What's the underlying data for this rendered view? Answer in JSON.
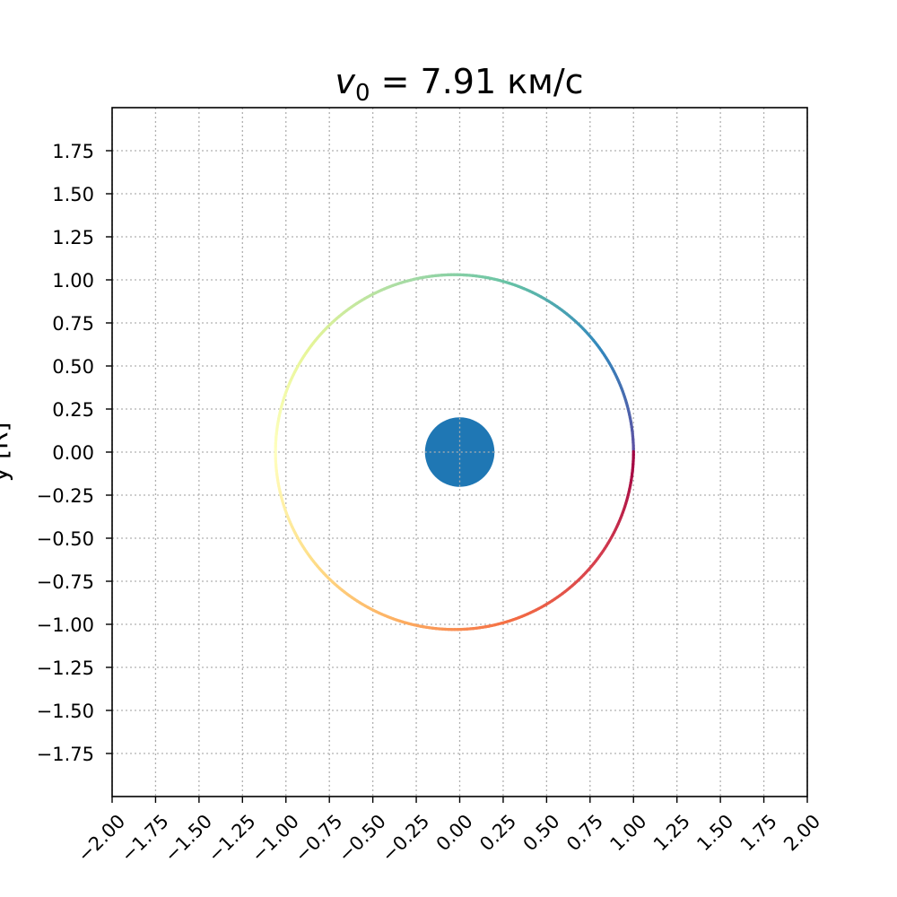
{
  "chart_data": {
    "type": "scatter",
    "title": {
      "var": "v",
      "sub": "0",
      "rest": " = 7.91 км/с"
    },
    "ylabel": "y [R]",
    "xlim": [
      -2.0,
      2.0
    ],
    "ylim": [
      -2.0,
      2.0
    ],
    "x_ticks": [
      "−2.00",
      "−1.75",
      "−1.50",
      "−1.25",
      "−1.00",
      "−0.75",
      "−0.50",
      "−0.25",
      "0.00",
      "0.25",
      "0.50",
      "0.75",
      "1.00",
      "1.25",
      "1.50",
      "1.75",
      "2.00"
    ],
    "x_tick_values": [
      -2.0,
      -1.75,
      -1.5,
      -1.25,
      -1.0,
      -0.75,
      -0.5,
      -0.25,
      0.0,
      0.25,
      0.5,
      0.75,
      1.0,
      1.25,
      1.5,
      1.75,
      2.0
    ],
    "y_ticks": [
      "1.75",
      "1.50",
      "1.25",
      "1.00",
      "0.75",
      "0.50",
      "0.25",
      "0.00",
      "−0.25",
      "−0.50",
      "−0.75",
      "−1.00",
      "−1.25",
      "−1.50",
      "−1.75"
    ],
    "y_tick_values": [
      1.75,
      1.5,
      1.25,
      1.0,
      0.75,
      0.5,
      0.25,
      0.0,
      -0.25,
      -0.5,
      -0.75,
      -1.0,
      -1.25,
      -1.5,
      -1.75
    ],
    "grid": true,
    "planet": {
      "center": [
        0.0,
        0.0
      ],
      "radius": 0.2,
      "color": "#1f77b4"
    },
    "orbit": {
      "center": [
        -0.03,
        0.0
      ],
      "radius": 1.03,
      "start_angle_deg": 0,
      "direction": "counterclockwise",
      "colormap": "Spectral_r",
      "colors": [
        "#5e4fa2",
        "#3288bd",
        "#66c2a5",
        "#abdda4",
        "#e6f598",
        "#ffffbf",
        "#fee08b",
        "#fdae61",
        "#f46d43",
        "#d53e4f",
        "#9e0142"
      ]
    }
  }
}
